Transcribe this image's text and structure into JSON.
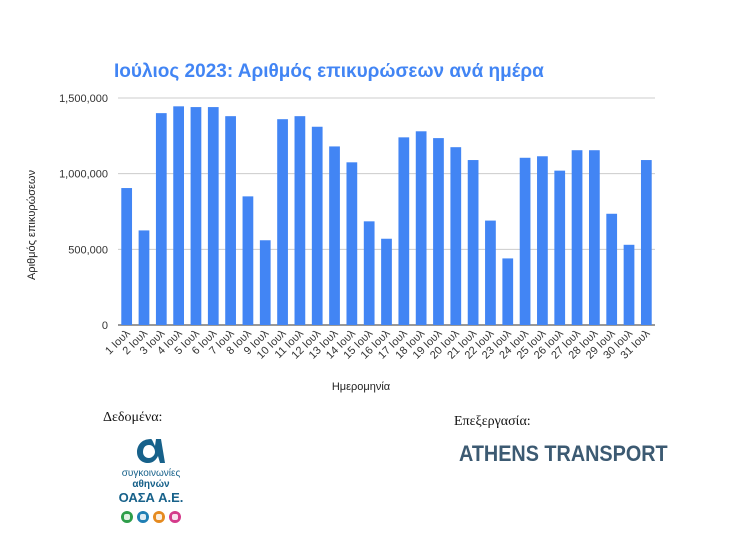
{
  "chart_data": {
    "type": "bar",
    "title": "Ιούλιος 2023: Αριθμός επικυρώσεων ανά ημέρα",
    "xlabel": "Ημερομηνία",
    "ylabel": "Αριθμός επικυρώσεων",
    "ylim": [
      0,
      1500000
    ],
    "yticks": [
      0,
      500000,
      1000000,
      1500000
    ],
    "ytick_labels": [
      "0",
      "500,000",
      "1,000,000",
      "1,500,000"
    ],
    "grid": true,
    "categories": [
      "1 Ιουλ",
      "2 Ιουλ",
      "3 Ιουλ",
      "4 Ιουλ",
      "5 Ιουλ",
      "6 Ιουλ",
      "7 Ιουλ",
      "8 Ιουλ",
      "9 Ιουλ",
      "10 Ιουλ",
      "11 Ιουλ",
      "12 Ιουλ",
      "13 Ιουλ",
      "14 Ιουλ",
      "15 Ιουλ",
      "16 Ιουλ",
      "17 Ιουλ",
      "18 Ιουλ",
      "19 Ιουλ",
      "20 Ιουλ",
      "21 Ιουλ",
      "22 Ιουλ",
      "23 Ιουλ",
      "24 Ιουλ",
      "25 Ιουλ",
      "26 Ιουλ",
      "27 Ιουλ",
      "28 Ιουλ",
      "29 Ιουλ",
      "30 Ιουλ",
      "31 Ιουλ"
    ],
    "values": [
      905000,
      625000,
      1400000,
      1445000,
      1440000,
      1440000,
      1380000,
      850000,
      560000,
      1360000,
      1380000,
      1310000,
      1180000,
      1075000,
      685000,
      570000,
      1240000,
      1280000,
      1235000,
      1175000,
      1090000,
      690000,
      440000,
      1105000,
      1115000,
      1020000,
      1155000,
      1155000,
      735000,
      530000,
      1090000
    ]
  },
  "colors": {
    "bar": "#4285f4",
    "title": "#4285f4",
    "grid": "#cccccc",
    "baseline": "#333333"
  },
  "footer": {
    "data_label": "Δεδομένα:",
    "processing_label": "Επεξεργασία:",
    "oasa_logo": {
      "icon": "oasa-alpha-icon",
      "line1": "συγκοινωνίες",
      "line2": "αθηνών",
      "line3": "ΟΑΣΑ Α.Ε."
    },
    "athens_transport": "ATHENS TRANSPORT"
  }
}
